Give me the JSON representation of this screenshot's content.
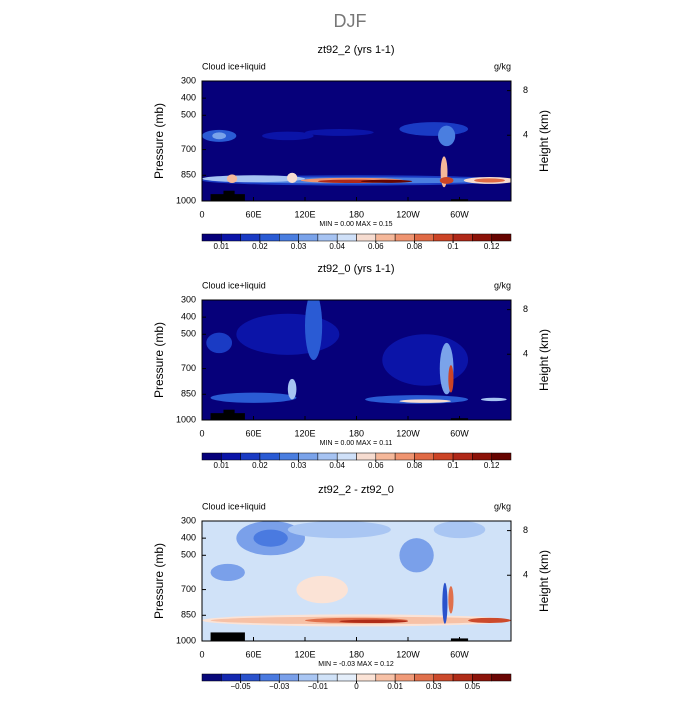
{
  "figure_title": "DJF",
  "chart_data": [
    {
      "type": "contour",
      "title": "zt92_2 (yrs 1-1)",
      "left_label": "Cloud ice+liquid",
      "right_label": "g/kg",
      "y_label": "Pressure (mb)",
      "y2_label": "Height (km)",
      "stats": "MIN =    0.00   MAX =    0.15",
      "xlim": [
        0,
        360
      ],
      "xticks": [
        0,
        {
          "value": 60,
          "label": "60E"
        },
        {
          "value": 120,
          "label": "120E"
        },
        180,
        {
          "value": 240,
          "label": "120W"
        },
        {
          "value": 300,
          "label": "60W"
        }
      ],
      "ylim": [
        1000,
        300
      ],
      "yticks": [
        300,
        400,
        500,
        700,
        850,
        1000
      ],
      "y2ticks": [
        4,
        8
      ],
      "colorbar": {
        "levels": [
          0.01,
          0.015,
          0.02,
          0.025,
          0.03,
          0.035,
          0.04,
          0.05,
          0.06,
          0.07,
          0.08,
          0.09,
          0.1,
          0.11,
          0.12
        ],
        "colors": [
          "#06007a",
          "#0b14a8",
          "#1a3bc4",
          "#2a5bd4",
          "#4a7ee0",
          "#7aa3ea",
          "#a6c3f2",
          "#cfe0f8",
          "#f6dcd0",
          "#f5b89a",
          "#ef9470",
          "#e06a45",
          "#cc4426",
          "#b02818",
          "#8c1208",
          "#660400"
        ],
        "ticks": [
          0.01,
          0.02,
          0.03,
          0.04,
          0.06,
          0.08,
          0.1,
          0.12
        ]
      }
    },
    {
      "type": "contour",
      "title": "zt92_0 (yrs 1-1)",
      "left_label": "Cloud ice+liquid",
      "right_label": "g/kg",
      "y_label": "Pressure (mb)",
      "y2_label": "Height (km)",
      "stats": "MIN =    0.00   MAX =    0.11",
      "xlim": [
        0,
        360
      ],
      "xticks": [
        0,
        {
          "value": 60,
          "label": "60E"
        },
        {
          "value": 120,
          "label": "120E"
        },
        180,
        {
          "value": 240,
          "label": "120W"
        },
        {
          "value": 300,
          "label": "60W"
        }
      ],
      "ylim": [
        1000,
        300
      ],
      "yticks": [
        300,
        400,
        500,
        700,
        850,
        1000
      ],
      "y2ticks": [
        4,
        8
      ],
      "colorbar": {
        "levels": [
          0.01,
          0.015,
          0.02,
          0.025,
          0.03,
          0.035,
          0.04,
          0.05,
          0.06,
          0.07,
          0.08,
          0.09,
          0.1,
          0.11,
          0.12
        ],
        "colors": [
          "#06007a",
          "#0b14a8",
          "#1a3bc4",
          "#2a5bd4",
          "#4a7ee0",
          "#7aa3ea",
          "#a6c3f2",
          "#cfe0f8",
          "#f6dcd0",
          "#f5b89a",
          "#ef9470",
          "#e06a45",
          "#cc4426",
          "#b02818",
          "#8c1208",
          "#660400"
        ],
        "ticks": [
          0.01,
          0.02,
          0.03,
          0.04,
          0.06,
          0.08,
          0.1,
          0.12
        ]
      }
    },
    {
      "type": "contour",
      "title": "zt92_2 - zt92_0",
      "left_label": "Cloud ice+liquid",
      "right_label": "g/kg",
      "y_label": "Pressure (mb)",
      "y2_label": "Height (km)",
      "stats": "MIN =   -0.03   MAX =    0.12",
      "xlim": [
        0,
        360
      ],
      "xticks": [
        0,
        {
          "value": 60,
          "label": "60E"
        },
        {
          "value": 120,
          "label": "120E"
        },
        180,
        {
          "value": 240,
          "label": "120W"
        },
        {
          "value": 300,
          "label": "60W"
        }
      ],
      "ylim": [
        1000,
        300
      ],
      "yticks": [
        300,
        400,
        500,
        700,
        850,
        1000
      ],
      "y2ticks": [
        4,
        8
      ],
      "colorbar": {
        "levels": [
          -0.06,
          -0.05,
          -0.04,
          -0.03,
          -0.02,
          -0.01,
          -0.005,
          0,
          0.005,
          0.01,
          0.02,
          0.03,
          0.04,
          0.05,
          0.06
        ],
        "colors": [
          "#08087a",
          "#1428b0",
          "#2a52cc",
          "#4a7ae0",
          "#7aa0ea",
          "#a9c6f3",
          "#d0e2f8",
          "#e4eefa",
          "#fbe3d6",
          "#f7c1a6",
          "#f09a78",
          "#e0704c",
          "#cc4a2c",
          "#b02c18",
          "#8c140a",
          "#6a0604"
        ],
        "ticks": [
          {
            "value": -0.05,
            "label": "−0.05"
          },
          {
            "value": -0.03,
            "label": "−0.03"
          },
          {
            "value": -0.01,
            "label": "−0.01"
          },
          0,
          0.01,
          0.03,
          0.05
        ]
      }
    }
  ]
}
